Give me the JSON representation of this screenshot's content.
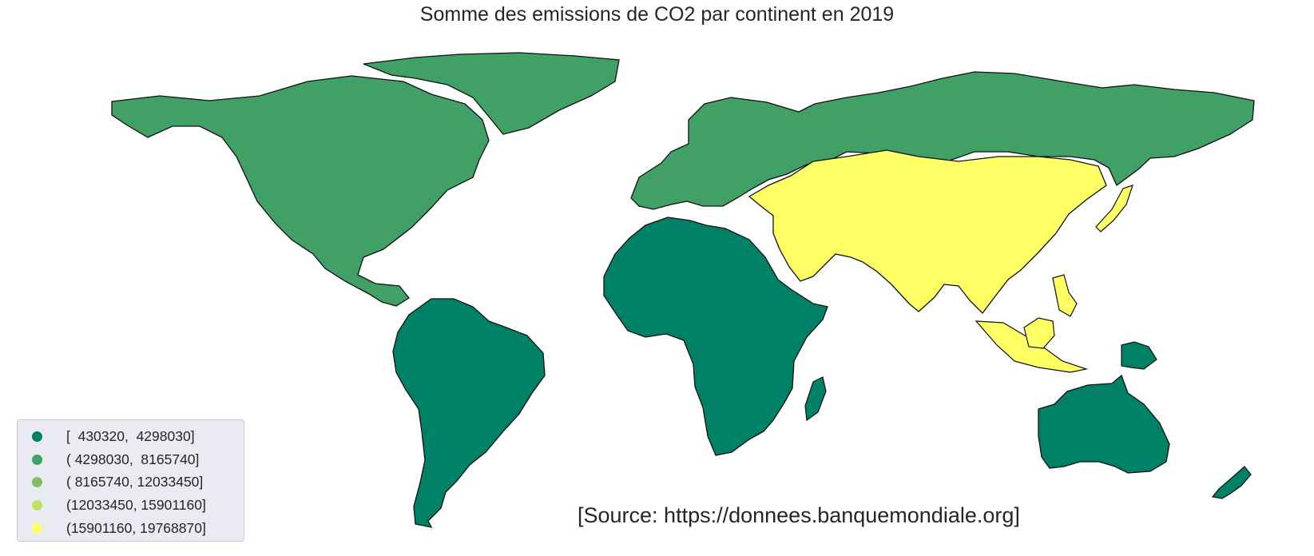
{
  "title": "Somme des emissions de CO2 par continent en 2019",
  "source": "[Source: https://donnees.banquemondiale.org]",
  "legend": [
    {
      "label": "[  430320,  4298030]",
      "color": "#008066"
    },
    {
      "label": "( 4298030,  8165740]",
      "color": "#40a066"
    },
    {
      "label": "( 8165740, 12033450]",
      "color": "#7fbf66"
    },
    {
      "label": "(12033450, 15901160]",
      "color": "#c0e066"
    },
    {
      "label": "(15901160, 19768870]",
      "color": "#ffff66"
    }
  ],
  "regions": [
    {
      "name": "North America",
      "class": 1
    },
    {
      "name": "Europe",
      "class": 1
    },
    {
      "name": "Asia",
      "class": 4
    },
    {
      "name": "Africa",
      "class": 0
    },
    {
      "name": "South America",
      "class": 0
    },
    {
      "name": "Oceania",
      "class": 0
    }
  ]
}
